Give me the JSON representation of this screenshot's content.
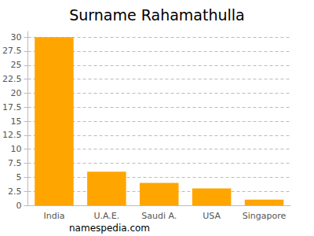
{
  "chart_data": {
    "type": "bar",
    "title": "Surname Rahamathulla",
    "categories": [
      "India",
      "U.A.E.",
      "Saudi A.",
      "USA",
      "Singapore"
    ],
    "values": [
      30,
      6,
      4,
      3,
      1
    ],
    "color": "#ffa500",
    "ylim": [
      0,
      31
    ],
    "yticks": [
      0,
      2.5,
      5,
      7.5,
      10,
      12.5,
      15,
      17.5,
      20,
      22.5,
      25,
      27.5,
      30
    ],
    "grid": true,
    "annotations": [
      "namespedia.com"
    ]
  }
}
